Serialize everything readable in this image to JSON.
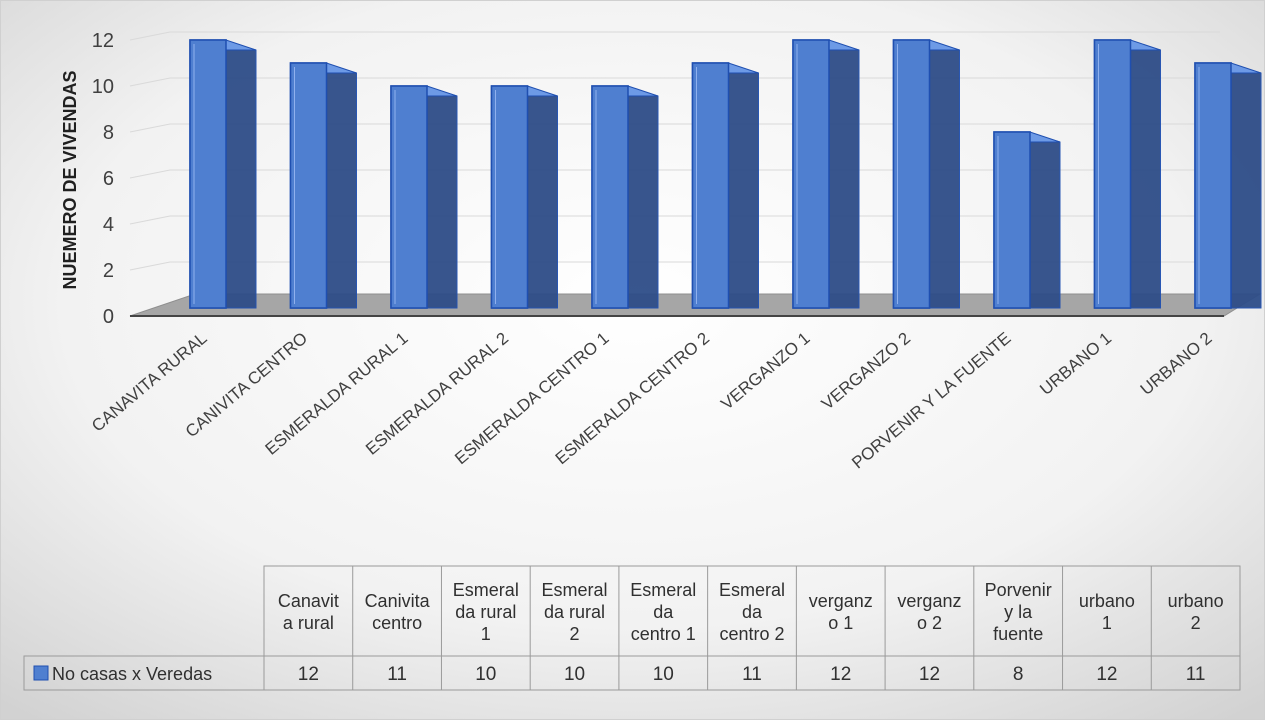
{
  "chart_data": {
    "type": "bar",
    "ylabel": "NUEMERO DE VIVENDAS",
    "ylim": [
      0,
      12
    ],
    "yticks": [
      "0",
      "2",
      "4",
      "6",
      "8",
      "10",
      "12"
    ],
    "categories": [
      "CANAVITA RURAL",
      "CANIVITA CENTRO",
      "ESMERALDA RURAL 1",
      "ESMERALDA RURAL 2",
      "ESMERALDA CENTRO 1",
      "ESMERALDA CENTRO 2",
      "VERGANZO 1",
      "VERGANZO 2",
      "PORVENIR Y LA FUENTE",
      "URBANO 1",
      "URBANO 2"
    ],
    "series": [
      {
        "name": "No casas x Veredas",
        "values": [
          12,
          11,
          10,
          10,
          10,
          11,
          12,
          12,
          8,
          12,
          11
        ]
      }
    ],
    "table_headers": [
      [
        "Canavit",
        "a rural"
      ],
      [
        "Canivita",
        "centro"
      ],
      [
        "Esmeral",
        "da rural",
        "1"
      ],
      [
        "Esmeral",
        "da rural",
        "2"
      ],
      [
        "Esmeral",
        "da",
        "centro 1"
      ],
      [
        "Esmeral",
        "da",
        "centro 2"
      ],
      [
        "verganz",
        "o 1"
      ],
      [
        "verganz",
        "o 2"
      ],
      [
        "Porvenir",
        "y la",
        "fuente"
      ],
      [
        "urbano",
        "1"
      ],
      [
        "urbano",
        "2"
      ]
    ],
    "grid": true,
    "legend": "data-table"
  },
  "colors": {
    "bar_front": "#4f7fd0",
    "bar_side": "#2e4d88",
    "bar_top": "#6d9ae6",
    "bar_stroke": "#1f4fb0",
    "floor": "#a6a6a6",
    "grid": "#d9d9d9"
  }
}
